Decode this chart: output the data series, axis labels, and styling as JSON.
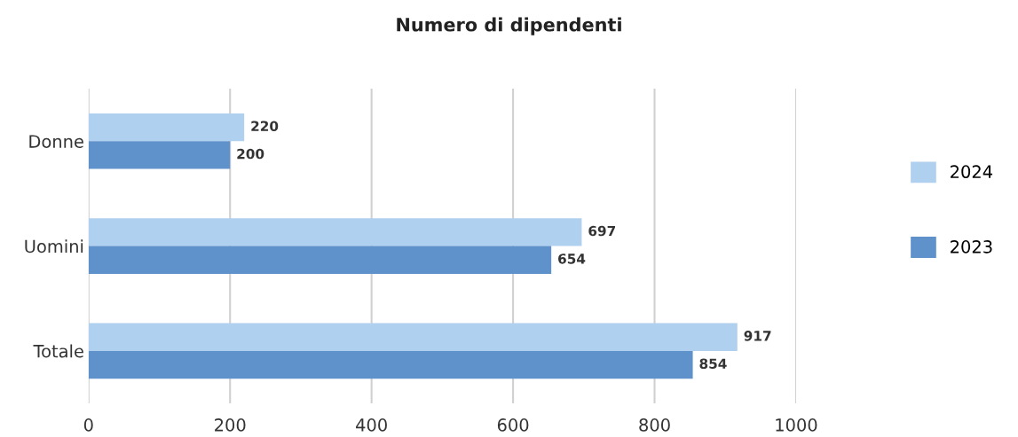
{
  "chart_data": {
    "type": "bar",
    "orientation": "horizontal",
    "title": "Numero di dipendenti",
    "categories": [
      "Donne",
      "Uomini",
      "Totale"
    ],
    "series": [
      {
        "name": "2024",
        "color": "#afd0ee",
        "values": [
          220,
          697,
          917
        ]
      },
      {
        "name": "2023",
        "color": "#5f91cb",
        "values": [
          200,
          654,
          854
        ]
      }
    ],
    "xlim": [
      0,
      1000
    ],
    "xticks": [
      0,
      200,
      400,
      600,
      800,
      1000
    ],
    "grid": "x",
    "legend": "right",
    "data_labels": true
  }
}
